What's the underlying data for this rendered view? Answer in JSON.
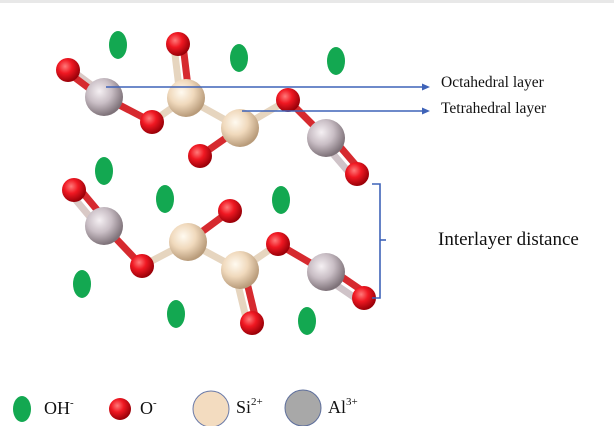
{
  "labels": {
    "octahedral": "Octahedral layer",
    "tetrahedral": "Tetrahedral layer",
    "interlayer": "Interlayer distance"
  },
  "legend": {
    "oh": {
      "base": "OH",
      "sup": "-"
    },
    "o": {
      "base": "O",
      "sup": "-"
    },
    "si": {
      "base": "Si",
      "sup": "2+"
    },
    "al": {
      "base": "Al",
      "sup": "3+"
    }
  },
  "colors": {
    "oh": "#13a851",
    "oxygen": "#e8101b",
    "si": "#f3dcc0",
    "al": "#c8bfc6",
    "arrow": "#3f63b8",
    "bracket": "#3f63b8"
  }
}
